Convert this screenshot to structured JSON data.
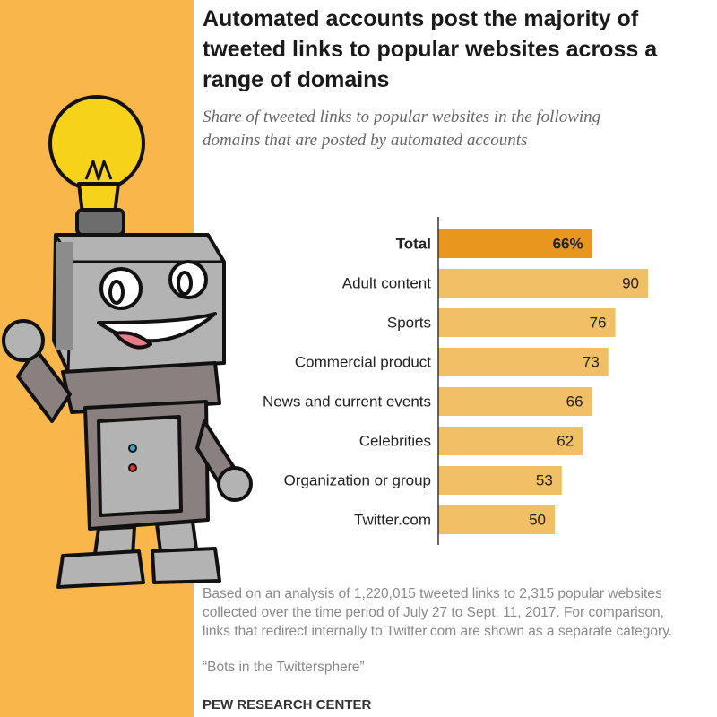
{
  "chart_data": {
    "type": "bar",
    "orientation": "horizontal",
    "title": "Automated accounts post the majority of tweeted links to popular websites across a range of domains",
    "subtitle": "Share of tweeted links to popular websites in the following domains that are posted by automated accounts",
    "categories": [
      "Total",
      "Adult content",
      "Sports",
      "Commercial product",
      "News and current events",
      "Celebrities",
      "Organization or group",
      "Twitter.com"
    ],
    "values": [
      66,
      90,
      76,
      73,
      66,
      62,
      53,
      50
    ],
    "value_labels": [
      "66%",
      "90",
      "76",
      "73",
      "66",
      "62",
      "53",
      "50"
    ],
    "colors": [
      "#e8961e",
      "#f1c066",
      "#f1c066",
      "#f1c066",
      "#f1c066",
      "#f1c066",
      "#f1c066",
      "#f1c066"
    ],
    "xlim": [
      0,
      100
    ],
    "note": "Based on an analysis of 1,220,015 tweeted links to 2,315 popular websites collected over the time period of July 27 to Sept. 11, 2017. For comparison, links that redirect internally to Twitter.com are shown as a separate category.",
    "source": "“Bots in the Twittersphere”",
    "credit": "PEW RESEARCH CENTER"
  }
}
